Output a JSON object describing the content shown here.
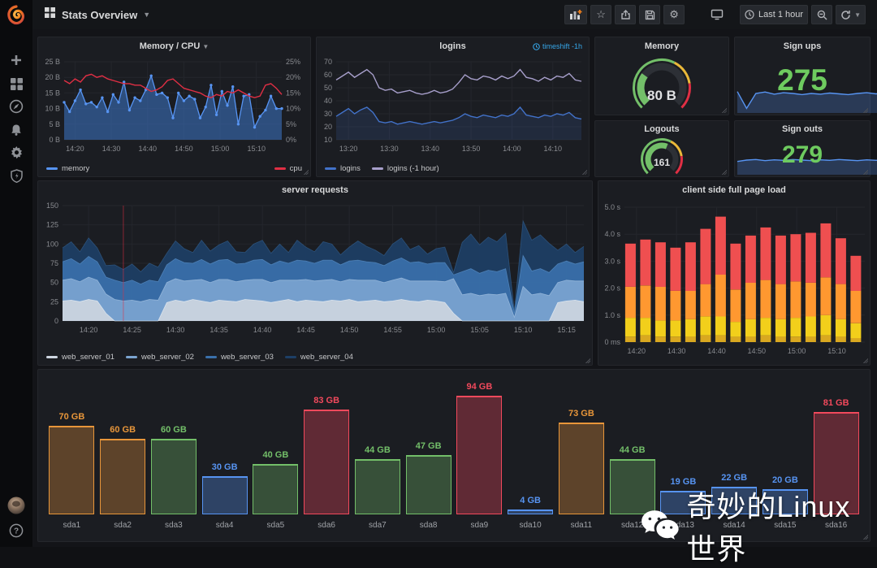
{
  "header": {
    "dashboard_title": "Stats Overview",
    "time_range_label": "Last 1 hour"
  },
  "icons": {
    "star": "☆",
    "gear": "⚙",
    "plus": "+",
    "caret": "▾",
    "help": "?"
  },
  "watermark": {
    "text": "奇妙的Linux世界"
  },
  "panels": {
    "memcpu": {
      "title": "Memory / CPU",
      "chart_data": {
        "type": "line",
        "y_left_ticks": [
          "0 B",
          "5 B",
          "10 B",
          "15 B",
          "20 B",
          "25 B"
        ],
        "y_right_ticks": [
          "0%",
          "5%",
          "10%",
          "15%",
          "20%",
          "25%"
        ],
        "y_left_max": 25,
        "y_right_max": 25,
        "x_ticks": [
          {
            "label": "14:20",
            "min": 3
          },
          {
            "label": "14:30",
            "min": 13
          },
          {
            "label": "14:40",
            "min": 23
          },
          {
            "label": "14:50",
            "min": 33
          },
          {
            "label": "15:00",
            "min": 43
          },
          {
            "label": "15:10",
            "min": 53
          }
        ],
        "series": [
          {
            "name": "memory",
            "color": "#5794F2",
            "axis": "left",
            "unit": "B",
            "values": [
              12,
              9,
              12.5,
              16,
              11.5,
              12,
              10.5,
              13.5,
              9,
              14.5,
              12,
              18.5,
              9.5,
              13.5,
              12.5,
              16,
              20.5,
              14.5,
              15,
              13.5,
              7,
              15,
              12.5,
              14,
              13,
              7,
              10.5,
              17.5,
              8,
              15.5,
              11,
              17,
              5,
              14,
              14.5,
              4,
              7.5,
              9.5,
              14,
              10,
              10
            ]
          },
          {
            "name": "cpu",
            "color": "#E02F44",
            "axis": "right",
            "unit": "%",
            "values": [
              19,
              18,
              19.5,
              18.5,
              20.5,
              21,
              20,
              20.5,
              19.5,
              19,
              18.5,
              18,
              18,
              17.5,
              17.5,
              16.5,
              15.5,
              16,
              17,
              19,
              19.5,
              18,
              16.5,
              16,
              15.5,
              15,
              14,
              13.5,
              14.5,
              14,
              15.5,
              15,
              16,
              15,
              14,
              13.5,
              14,
              17.5,
              18,
              16.5,
              14.5
            ]
          }
        ]
      }
    },
    "logins": {
      "title": "logins",
      "timeshift_label": "timeshift -1h",
      "chart_data": {
        "type": "line",
        "y_ticks": [
          "10",
          "20",
          "30",
          "40",
          "50",
          "60",
          "70"
        ],
        "y_min": 10,
        "y_max": 70,
        "x_ticks": [
          {
            "label": "13:20",
            "min": 3
          },
          {
            "label": "13:30",
            "min": 13
          },
          {
            "label": "13:40",
            "min": 23
          },
          {
            "label": "13:50",
            "min": 33
          },
          {
            "label": "14:00",
            "min": 43
          },
          {
            "label": "14:10",
            "min": 53
          }
        ],
        "series": [
          {
            "name": "logins",
            "color": "#4272C9",
            "values": [
              28,
              31,
              34,
              30,
              33,
              35,
              31,
              24,
              23,
              24,
              22,
              23,
              24,
              23,
              22,
              23,
              24,
              23,
              24,
              25,
              27,
              30,
              28,
              27,
              29,
              28,
              27,
              29,
              28,
              30,
              35,
              29,
              28,
              27,
              29,
              28,
              30,
              29,
              31,
              27,
              26
            ]
          },
          {
            "name": "logins (-1 hour)",
            "color": "#A79FCB",
            "values": [
              56,
              59,
              62,
              58,
              61,
              64,
              60,
              50,
              48,
              49,
              46,
              47,
              48,
              46,
              45,
              46,
              48,
              46,
              47,
              49,
              54,
              60,
              57,
              56,
              59,
              58,
              56,
              59,
              57,
              59,
              64,
              58,
              57,
              55,
              58,
              56,
              59,
              58,
              61,
              56,
              55
            ]
          }
        ]
      }
    },
    "memory_gauge": {
      "title": "Memory",
      "value": "80 B",
      "fraction": 0.3,
      "value_color": "#73BF69",
      "thresholds": [
        {
          "color": "#73BF69",
          "to": 0.6
        },
        {
          "color": "#EAB839",
          "to": 0.8
        },
        {
          "color": "#E02F44",
          "to": 1.0
        }
      ]
    },
    "sign_ups": {
      "title": "Sign ups",
      "value": "275",
      "spark_color": "#5794F2",
      "spark": [
        55,
        10,
        50,
        54,
        48,
        52,
        50,
        47,
        50,
        48,
        51,
        49,
        47,
        50,
        52,
        49,
        52,
        78,
        75,
        80,
        74,
        78,
        25,
        72,
        70,
        52,
        48
      ]
    },
    "logouts": {
      "title": "Logouts",
      "value": "161",
      "fraction": 0.58,
      "value_color": "#73BF69",
      "thresholds": [
        {
          "color": "#73BF69",
          "to": 0.6
        },
        {
          "color": "#EAB839",
          "to": 0.8
        },
        {
          "color": "#E02F44",
          "to": 1.0
        }
      ]
    },
    "sign_outs": {
      "title": "Sign outs",
      "value": "279",
      "spark_color": "#5794F2",
      "spark": [
        45,
        50,
        52,
        48,
        51,
        49,
        52,
        50,
        48,
        51,
        49,
        52,
        50,
        48,
        51,
        49,
        50,
        52,
        78,
        76,
        80,
        74,
        77,
        20,
        65,
        60,
        55
      ]
    },
    "server_requests": {
      "title": "server requests",
      "chart_data": {
        "type": "area",
        "stacked": true,
        "y_ticks": [
          "0",
          "25",
          "50",
          "75",
          "100",
          "125",
          "150"
        ],
        "y_max": 150,
        "annotation_min": 7,
        "x_ticks": [
          {
            "label": "14:20",
            "min": 3
          },
          {
            "label": "14:25",
            "min": 8
          },
          {
            "label": "14:30",
            "min": 13
          },
          {
            "label": "14:35",
            "min": 18
          },
          {
            "label": "14:40",
            "min": 23
          },
          {
            "label": "14:45",
            "min": 28
          },
          {
            "label": "14:50",
            "min": 33
          },
          {
            "label": "14:55",
            "min": 38
          },
          {
            "label": "15:00",
            "min": 43
          },
          {
            "label": "15:05",
            "min": 48
          },
          {
            "label": "15:10",
            "min": 53
          },
          {
            "label": "15:15",
            "min": 58
          }
        ],
        "series": [
          {
            "name": "web_server_01",
            "color": "#CDD5E0",
            "stroke": "#EEF2F7",
            "values": [
              26,
              27,
              25,
              28,
              26,
              10,
              0,
              0,
              0,
              0,
              0,
              0,
              24,
              27,
              25,
              28,
              26,
              24,
              27,
              26,
              25,
              28,
              27,
              26,
              24,
              26,
              28,
              25,
              27,
              26,
              25,
              27,
              26,
              28,
              25,
              26,
              27,
              25,
              26,
              28,
              26,
              25,
              27,
              26,
              24,
              10,
              0,
              0,
              0,
              0,
              0,
              0,
              0,
              0,
              0,
              0,
              0,
              24,
              26,
              27,
              25
            ]
          },
          {
            "name": "web_server_02",
            "color": "#7BA4D0",
            "stroke": "#A9C6E4",
            "values": [
              27,
              28,
              26,
              29,
              27,
              25,
              28,
              26,
              27,
              25,
              28,
              27,
              26,
              28,
              27,
              25,
              28,
              26,
              27,
              28,
              26,
              25,
              27,
              28,
              26,
              27,
              25,
              28,
              27,
              26,
              28,
              27,
              25,
              26,
              28,
              27,
              26,
              25,
              27,
              28,
              26,
              27,
              25,
              26,
              27,
              45,
              34,
              36,
              33,
              35,
              34,
              36,
              5,
              45,
              34,
              36,
              33,
              26,
              27,
              25,
              27
            ]
          },
          {
            "name": "web_server_03",
            "color": "#3A70AB",
            "stroke": "#5B92C9",
            "values": [
              24,
              26,
              23,
              27,
              24,
              22,
              25,
              24,
              26,
              23,
              25,
              24,
              23,
              26,
              24,
              22,
              26,
              24,
              25,
              26,
              23,
              22,
              25,
              26,
              23,
              25,
              22,
              26,
              24,
              23,
              26,
              25,
              22,
              24,
              26,
              24,
              23,
              22,
              25,
              26,
              24,
              25,
              22,
              24,
              25,
              5,
              30,
              32,
              29,
              31,
              30,
              32,
              5,
              40,
              31,
              32,
              30,
              24,
              25,
              22,
              25
            ]
          },
          {
            "name": "web_server_04",
            "color": "#1D3F66",
            "stroke": "#33608F",
            "values": [
              18,
              22,
              16,
              24,
              18,
              15,
              20,
              17,
              21,
              16,
              22,
              19,
              15,
              23,
              18,
              14,
              25,
              17,
              20,
              24,
              16,
              14,
              21,
              25,
              15,
              22,
              14,
              26,
              18,
              15,
              24,
              21,
              13,
              18,
              25,
              20,
              16,
              13,
              22,
              26,
              17,
              21,
              13,
              18,
              20,
              3,
              38,
              45,
              37,
              43,
              39,
              46,
              3,
              45,
              40,
              44,
              38,
              18,
              22,
              15,
              20
            ]
          }
        ]
      }
    },
    "page_load": {
      "title": "client side full page load",
      "chart_data": {
        "type": "bar",
        "stacked": true,
        "y_ticks": [
          "0 ms",
          "1.0 s",
          "2.0 s",
          "3.0 s",
          "4.0 s",
          "5.0 s"
        ],
        "y_max": 5,
        "x_ticks": [
          {
            "label": "14:20",
            "min": 3
          },
          {
            "label": "14:30",
            "min": 13
          },
          {
            "label": "14:40",
            "min": 23
          },
          {
            "label": "14:50",
            "min": 33
          },
          {
            "label": "15:00",
            "min": 43
          },
          {
            "label": "15:10",
            "min": 53
          }
        ],
        "bar_minutes": [
          1.5,
          5.25,
          9,
          12.75,
          16.5,
          20.25,
          24,
          27.75,
          31.5,
          35.25,
          39,
          42.75,
          46.5,
          50.25,
          54,
          57.75
        ],
        "segments": [
          {
            "name": "segment_1",
            "color": "#D9A820",
            "values": [
              0.2,
              0.25,
              0.2,
              0.2,
              0.2,
              0.25,
              0.25,
              0.2,
              0.2,
              0.25,
              0.2,
              0.2,
              0.2,
              0.25,
              0.2,
              0.15
            ]
          },
          {
            "name": "segment_2",
            "color": "#F2CF1B",
            "values": [
              0.7,
              0.65,
              0.6,
              0.6,
              0.65,
              0.7,
              0.7,
              0.55,
              0.65,
              0.65,
              0.65,
              0.7,
              0.75,
              0.75,
              0.65,
              0.55
            ]
          },
          {
            "name": "segment_3",
            "color": "#FF9830",
            "values": [
              1.15,
              1.2,
              1.25,
              1.1,
              1.05,
              1.2,
              1.55,
              1.2,
              1.35,
              1.4,
              1.3,
              1.35,
              1.25,
              1.4,
              1.3,
              1.2
            ]
          },
          {
            "name": "segment_4",
            "color": "#EF4F50",
            "values": [
              1.6,
              1.7,
              1.65,
              1.6,
              1.8,
              2.05,
              2.15,
              1.7,
              1.75,
              1.95,
              1.8,
              1.75,
              1.85,
              2.0,
              1.7,
              1.3
            ]
          }
        ]
      }
    },
    "disk": {
      "chart_data": {
        "type": "bar",
        "unit": "GB",
        "max_value": 94,
        "bars": [
          {
            "label": "sda1",
            "value": 70,
            "display": "70 GB",
            "color": "#E8963A"
          },
          {
            "label": "sda2",
            "value": 60,
            "display": "60 GB",
            "color": "#E8963A"
          },
          {
            "label": "sda3",
            "value": 60,
            "display": "60 GB",
            "color": "#73BF69"
          },
          {
            "label": "sda4",
            "value": 30,
            "display": "30 GB",
            "color": "#5794F2"
          },
          {
            "label": "sda5",
            "value": 40,
            "display": "40 GB",
            "color": "#73BF69"
          },
          {
            "label": "sda6",
            "value": 83,
            "display": "83 GB",
            "color": "#F2495C"
          },
          {
            "label": "sda7",
            "value": 44,
            "display": "44 GB",
            "color": "#73BF69"
          },
          {
            "label": "sda8",
            "value": 47,
            "display": "47 GB",
            "color": "#73BF69"
          },
          {
            "label": "sda9",
            "value": 94,
            "display": "94 GB",
            "color": "#F2495C"
          },
          {
            "label": "sda10",
            "value": 4,
            "display": "4 GB",
            "color": "#5794F2"
          },
          {
            "label": "sda11",
            "value": 73,
            "display": "73 GB",
            "color": "#E8963A"
          },
          {
            "label": "sda12",
            "value": 44,
            "display": "44 GB",
            "color": "#73BF69"
          },
          {
            "label": "sda13",
            "value": 19,
            "display": "19 GB",
            "color": "#5794F2"
          },
          {
            "label": "sda14",
            "value": 22,
            "display": "22 GB",
            "color": "#5794F2"
          },
          {
            "label": "sda15",
            "value": 20,
            "display": "20 GB",
            "color": "#5794F2"
          },
          {
            "label": "sda16",
            "value": 81,
            "display": "81 GB",
            "color": "#F2495C"
          }
        ]
      }
    }
  }
}
